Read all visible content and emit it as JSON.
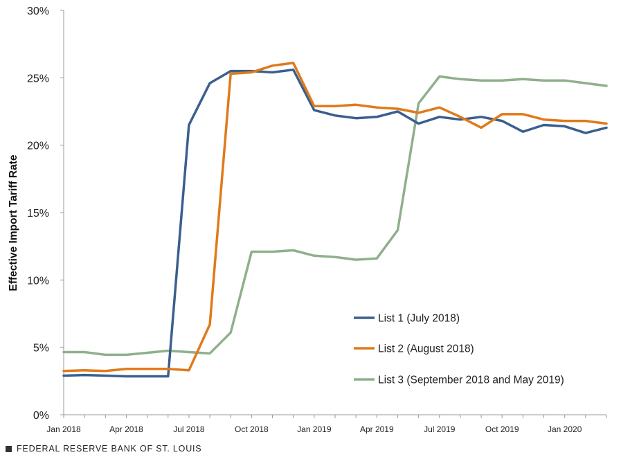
{
  "chart_data": {
    "type": "line",
    "title": "",
    "xlabel": "",
    "ylabel": "Effective Import Tariff Rate",
    "ylim": [
      0,
      30
    ],
    "y_ticks": [
      0,
      5,
      10,
      15,
      20,
      25,
      30
    ],
    "y_tick_labels": [
      "0%",
      "5%",
      "10%",
      "15%",
      "20%",
      "25%",
      "30%"
    ],
    "x": [
      "2018-01",
      "2018-02",
      "2018-03",
      "2018-04",
      "2018-05",
      "2018-06",
      "2018-07",
      "2018-08",
      "2018-09",
      "2018-10",
      "2018-11",
      "2018-12",
      "2019-01",
      "2019-02",
      "2019-03",
      "2019-04",
      "2019-05",
      "2019-06",
      "2019-07",
      "2019-08",
      "2019-09",
      "2019-10",
      "2019-11",
      "2019-12",
      "2020-01",
      "2020-02",
      "2020-03"
    ],
    "x_tick_labels": [
      {
        "x": "2018-01",
        "label": "Jan 2018"
      },
      {
        "x": "2018-04",
        "label": "Apr 2018"
      },
      {
        "x": "2018-07",
        "label": "Jul 2018"
      },
      {
        "x": "2018-10",
        "label": "Oct 2018"
      },
      {
        "x": "2019-01",
        "label": "Jan 2019"
      },
      {
        "x": "2019-04",
        "label": "Apr 2019"
      },
      {
        "x": "2019-07",
        "label": "Jul 2019"
      },
      {
        "x": "2019-10",
        "label": "Oct 2019"
      },
      {
        "x": "2020-01",
        "label": "Jan 2020"
      }
    ],
    "grid": false,
    "legend_position": "bottom-right",
    "series": [
      {
        "name": "List 1 (July 2018)",
        "color": "#3a5f8f",
        "values": [
          2.9,
          2.95,
          2.9,
          2.85,
          2.85,
          2.85,
          21.5,
          24.6,
          25.5,
          25.5,
          25.4,
          25.6,
          22.6,
          22.2,
          22.0,
          22.1,
          22.5,
          21.6,
          22.1,
          21.9,
          22.1,
          21.8,
          21.0,
          21.5,
          21.4,
          20.9,
          21.3
        ]
      },
      {
        "name": "List 2 (August 2018)",
        "color": "#e07a1a",
        "values": [
          3.25,
          3.3,
          3.25,
          3.4,
          3.4,
          3.4,
          3.3,
          6.7,
          25.3,
          25.4,
          25.9,
          26.1,
          22.9,
          22.9,
          23.0,
          22.8,
          22.7,
          22.4,
          22.8,
          22.1,
          21.3,
          22.3,
          22.3,
          21.9,
          21.8,
          21.8,
          21.6
        ]
      },
      {
        "name": "List 3 (September 2018 and May 2019)",
        "color": "#8fb08c",
        "values": [
          4.65,
          4.65,
          4.45,
          4.45,
          4.6,
          4.75,
          4.65,
          4.55,
          6.1,
          12.1,
          12.1,
          12.2,
          11.8,
          11.7,
          11.5,
          11.6,
          13.7,
          23.1,
          25.1,
          24.9,
          24.8,
          24.8,
          24.9,
          24.8,
          24.8,
          24.6,
          24.4
        ]
      }
    ]
  },
  "footer": {
    "source": "FEDERAL RESERVE BANK OF ST. LOUIS"
  }
}
